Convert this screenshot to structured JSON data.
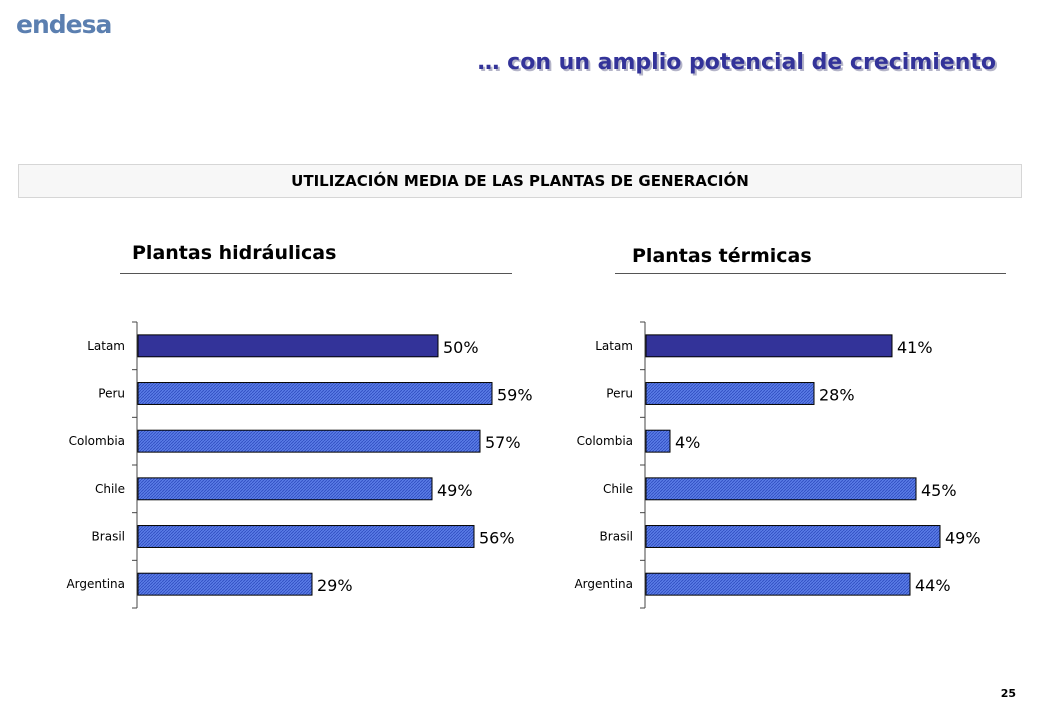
{
  "header": {
    "logo": "endesa",
    "title": "… con un amplio potencial de crecimiento"
  },
  "banner": "UTILIZACIÓN MEDIA DE LAS PLANTAS DE GENERACIÓN",
  "page_number": "25",
  "colors": {
    "highlight": "#333399",
    "bar": "#4d6fe0",
    "bar_hatch": "#2b45b8",
    "title": "#333399"
  },
  "chart_data": [
    {
      "type": "bar",
      "orientation": "horizontal",
      "title": "Plantas hidráulicas",
      "categories": [
        "Latam",
        "Peru",
        "Colombia",
        "Chile",
        "Brasil",
        "Argentina"
      ],
      "values": [
        50,
        59,
        57,
        49,
        56,
        29
      ],
      "labels": [
        "50%",
        "59%",
        "57%",
        "49%",
        "56%",
        "29%"
      ],
      "highlight": "Latam",
      "xlim": [
        0,
        59
      ]
    },
    {
      "type": "bar",
      "orientation": "horizontal",
      "title": "Plantas térmicas",
      "categories": [
        "Latam",
        "Peru",
        "Colombia",
        "Chile",
        "Brasil",
        "Argentina"
      ],
      "values": [
        41,
        28,
        4,
        45,
        49,
        44
      ],
      "labels": [
        "41%",
        "28%",
        "4%",
        "45%",
        "49%",
        "44%"
      ],
      "highlight": "Latam",
      "xlim": [
        0,
        59
      ]
    }
  ]
}
